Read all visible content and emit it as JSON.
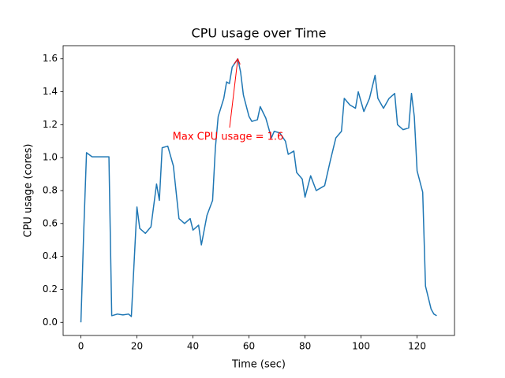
{
  "chart_data": {
    "type": "line",
    "title": "CPU usage over Time",
    "x_label": "Time (sec)",
    "y_label": "CPU usage (cores)",
    "x": [
      0,
      1,
      2,
      4,
      6,
      8,
      10,
      11,
      13,
      15,
      17,
      18,
      20,
      21,
      23,
      25,
      27,
      28,
      29,
      31,
      33,
      35,
      37,
      39,
      40,
      42,
      43,
      45,
      47,
      48,
      49,
      51,
      52,
      53,
      54,
      56,
      57,
      58,
      60,
      61,
      63,
      64,
      66,
      68,
      69,
      71,
      73,
      74,
      76,
      77,
      79,
      80,
      82,
      84,
      86,
      87,
      89,
      91,
      93,
      94,
      96,
      98,
      99,
      101,
      103,
      105,
      106,
      108,
      110,
      112,
      113,
      115,
      117,
      118,
      119,
      120,
      122,
      123,
      125,
      126,
      127
    ],
    "series": [
      {
        "name": "CPU usage",
        "color": "#1f77b4",
        "values": [
          0,
          0.55,
          1.03,
          1.005,
          1.005,
          1.005,
          1.005,
          0.04,
          0.05,
          0.045,
          0.05,
          0.035,
          0.7,
          0.57,
          0.54,
          0.58,
          0.84,
          0.74,
          1.06,
          1.07,
          0.95,
          0.63,
          0.6,
          0.63,
          0.56,
          0.59,
          0.47,
          0.65,
          0.74,
          1.06,
          1.25,
          1.36,
          1.46,
          1.45,
          1.55,
          1.6,
          1.52,
          1.38,
          1.25,
          1.22,
          1.23,
          1.31,
          1.24,
          1.12,
          1.16,
          1.15,
          1.1,
          1.02,
          1.04,
          0.91,
          0.87,
          0.76,
          0.89,
          0.8,
          0.82,
          0.83,
          0.98,
          1.12,
          1.16,
          1.36,
          1.32,
          1.3,
          1.4,
          1.28,
          1.36,
          1.5,
          1.36,
          1.3,
          1.36,
          1.39,
          1.2,
          1.17,
          1.18,
          1.39,
          1.25,
          0.92,
          0.79,
          0.22,
          0.08,
          0.05,
          0.04
        ]
      }
    ],
    "annotation": "Max CPU usage = 1.6",
    "annotation_color": "#ff0000",
    "xlim": [
      -6.35,
      133.35
    ],
    "xticks": [
      0,
      20,
      40,
      60,
      80,
      100,
      120
    ],
    "ylim": [
      -0.08,
      1.68
    ],
    "yticks": [
      {
        "value": 0,
        "label": "0.0"
      },
      0.2,
      0.4,
      0.6,
      0.8,
      {
        "value": 1,
        "label": "1.0"
      },
      1.2,
      1.4,
      1.6
    ],
    "grid": false
  }
}
